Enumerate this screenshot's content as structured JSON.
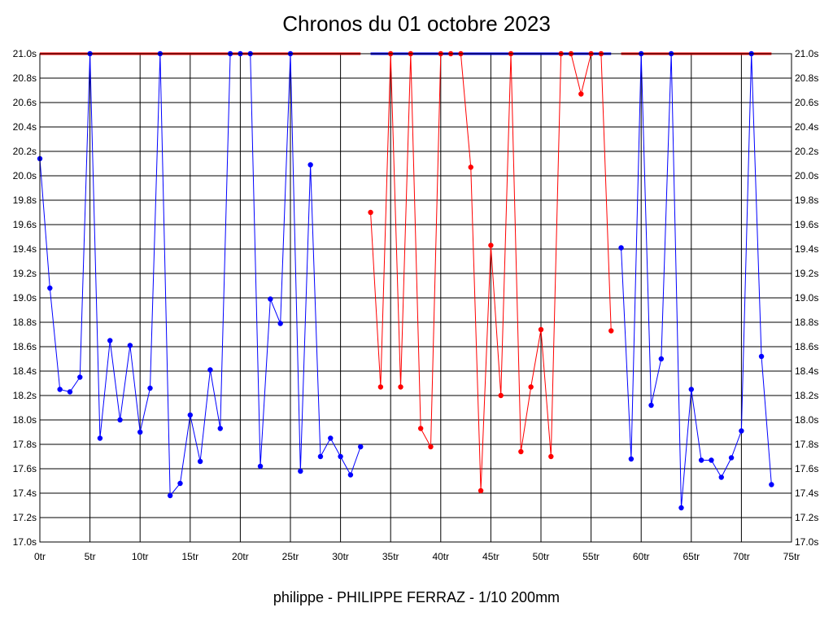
{
  "chart_data": {
    "type": "line",
    "title": "Chronos du 01 octobre 2023",
    "footer": "philippe - PHILIPPE FERRAZ - 1/10 200mm",
    "xlabel": "",
    "ylabel": "",
    "xlim": [
      0,
      75
    ],
    "ylim": [
      17.0,
      21.0
    ],
    "x_tick_step": 5,
    "y_tick_step": 0.2,
    "x_tick_suffix": "tr",
    "y_tick_suffix": "s",
    "x_tick_labels": [
      "0tr",
      "5tr",
      "10tr",
      "15tr",
      "20tr",
      "25tr",
      "30tr",
      "35tr",
      "40tr",
      "45tr",
      "50tr",
      "55tr",
      "60tr",
      "65tr",
      "70tr",
      "75tr"
    ],
    "y_tick_labels": [
      "17.0s",
      "17.2s",
      "17.4s",
      "17.6s",
      "17.8s",
      "18.0s",
      "18.2s",
      "18.4s",
      "18.6s",
      "18.8s",
      "19.0s",
      "19.2s",
      "19.4s",
      "19.6s",
      "19.8s",
      "20.0s",
      "20.2s",
      "20.4s",
      "20.6s",
      "20.8s",
      "21.0s"
    ],
    "grid": true,
    "legend": "none",
    "series": [
      {
        "color": "#0000ff",
        "x": [
          0,
          1,
          2,
          3,
          4,
          5,
          6,
          7,
          8,
          9,
          10,
          11,
          12,
          13,
          14,
          15,
          16,
          17,
          18,
          19,
          20,
          21,
          22,
          23,
          24,
          25,
          26,
          27,
          28,
          29,
          30,
          31,
          32
        ],
        "y": [
          20.14,
          19.08,
          18.25,
          18.23,
          18.35,
          21.0,
          17.85,
          18.65,
          18.0,
          18.61,
          17.9,
          18.26,
          21.0,
          17.38,
          17.48,
          18.04,
          17.66,
          18.41,
          17.93,
          21.0,
          21.0,
          21.0,
          17.62,
          18.99,
          18.79,
          21.0,
          17.58,
          20.09,
          17.7,
          17.85,
          17.7,
          17.55,
          17.78
        ],
        "cap_range": [
          0,
          32
        ],
        "cap_color": "#ff0000"
      },
      {
        "color": "#ff0000",
        "x": [
          33,
          34,
          35,
          36,
          37,
          38,
          39,
          40,
          41,
          42,
          43,
          44,
          45,
          46,
          47,
          48,
          49,
          50,
          51,
          52,
          53,
          54,
          55,
          56,
          57
        ],
        "y": [
          19.7,
          18.27,
          21.0,
          18.27,
          21.0,
          17.93,
          17.78,
          21.0,
          21.0,
          21.0,
          20.07,
          17.42,
          19.43,
          18.2,
          21.0,
          17.74,
          18.27,
          18.74,
          17.7,
          21.0,
          21.0,
          20.67,
          21.0,
          21.0,
          18.73
        ],
        "cap_range": [
          33,
          57
        ],
        "cap_color": "#0000ff"
      },
      {
        "color": "#0000ff",
        "x": [
          58,
          59,
          60,
          61,
          62,
          63,
          64,
          65,
          66,
          67,
          68,
          69,
          70,
          71,
          72,
          73
        ],
        "y": [
          19.41,
          17.68,
          21.0,
          18.12,
          18.5,
          21.0,
          17.28,
          18.25,
          17.67,
          17.67,
          17.53,
          17.69,
          17.91,
          21.0,
          18.52,
          17.47
        ],
        "cap_range": [
          58,
          73
        ],
        "cap_color": "#ff0000"
      }
    ]
  }
}
